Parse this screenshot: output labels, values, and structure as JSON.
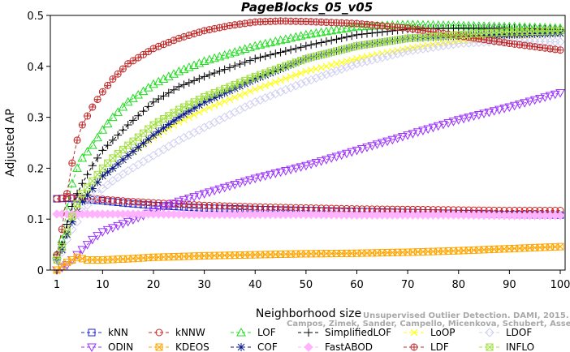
{
  "chart_data": {
    "type": "line",
    "title": "PageBlocks_05_v05",
    "xlabel": "Neighborhood size",
    "ylabel": "Adjusted AP",
    "xlim": [
      1,
      100
    ],
    "ylim": [
      0,
      0.5
    ],
    "xticks": [
      1,
      10,
      20,
      30,
      40,
      50,
      60,
      70,
      80,
      90,
      100
    ],
    "yticks": [
      0,
      0.1,
      0.2,
      0.3,
      0.4,
      0.5
    ],
    "xtick_labels": [
      "1",
      "10",
      "20",
      "30",
      "40",
      "50",
      "60",
      "70",
      "80",
      "90",
      "100"
    ],
    "ytick_labels": [
      "0",
      "0.1",
      "0.2",
      "0.3",
      "0.4",
      "0.5"
    ],
    "grid": false,
    "legend_placement": "bottom",
    "watermark": {
      "line1": "Unsupervised Outlier Detection. DAMI, 2015.",
      "line2": "Campos, Zimek, Sander, Campello, Micenkova, Schubert, Assent, Houle"
    },
    "series": [
      {
        "name": "kNN",
        "color": "#2020c8",
        "marker": "square",
        "x": [
          1,
          3,
          5,
          10,
          15,
          20,
          30,
          40,
          50,
          60,
          70,
          80,
          90,
          100
        ],
        "values": [
          0.14,
          0.141,
          0.14,
          0.136,
          0.131,
          0.127,
          0.122,
          0.119,
          0.117,
          0.115,
          0.113,
          0.111,
          0.109,
          0.108
        ]
      },
      {
        "name": "kNNW",
        "color": "#d02020",
        "marker": "circle",
        "x": [
          1,
          3,
          5,
          10,
          15,
          20,
          30,
          40,
          50,
          60,
          70,
          80,
          90,
          100
        ],
        "values": [
          0.14,
          0.142,
          0.142,
          0.139,
          0.135,
          0.132,
          0.127,
          0.124,
          0.122,
          0.12,
          0.119,
          0.118,
          0.117,
          0.117
        ]
      },
      {
        "name": "LOF",
        "color": "#20dd20",
        "marker": "triangle-up",
        "x": [
          1,
          2,
          3,
          4,
          5,
          6,
          8,
          10,
          12,
          15,
          20,
          25,
          30,
          40,
          50,
          60,
          70,
          80,
          90,
          100
        ],
        "values": [
          0.03,
          0.06,
          0.12,
          0.17,
          0.2,
          0.22,
          0.245,
          0.275,
          0.3,
          0.33,
          0.365,
          0.39,
          0.41,
          0.44,
          0.462,
          0.478,
          0.482,
          0.48,
          0.478,
          0.475
        ]
      },
      {
        "name": "SimplifiedLOF",
        "color": "#000000",
        "marker": "plus",
        "x": [
          1,
          2,
          3,
          4,
          5,
          6,
          8,
          10,
          12,
          15,
          20,
          25,
          30,
          40,
          50,
          60,
          70,
          80,
          90,
          100
        ],
        "values": [
          0.03,
          0.05,
          0.09,
          0.125,
          0.15,
          0.17,
          0.205,
          0.235,
          0.255,
          0.285,
          0.33,
          0.36,
          0.38,
          0.415,
          0.44,
          0.462,
          0.473,
          0.475,
          0.475,
          0.472
        ]
      },
      {
        "name": "LoOP",
        "color": "#ffff00",
        "marker": "x",
        "x": [
          1,
          2,
          3,
          4,
          5,
          6,
          8,
          10,
          12,
          15,
          20,
          25,
          30,
          40,
          50,
          60,
          70,
          80,
          90,
          100
        ],
        "values": [
          0.02,
          0.04,
          0.07,
          0.1,
          0.12,
          0.14,
          0.16,
          0.185,
          0.2,
          0.225,
          0.26,
          0.29,
          0.315,
          0.355,
          0.39,
          0.415,
          0.435,
          0.45,
          0.46,
          0.465
        ]
      },
      {
        "name": "LDOF",
        "color": "#d0d0f0",
        "marker": "diamond",
        "x": [
          1,
          2,
          3,
          4,
          5,
          6,
          8,
          10,
          12,
          15,
          20,
          25,
          30,
          40,
          50,
          60,
          70,
          80,
          90,
          100
        ],
        "values": [
          0.02,
          0.035,
          0.06,
          0.08,
          0.095,
          0.115,
          0.14,
          0.16,
          0.175,
          0.195,
          0.225,
          0.255,
          0.28,
          0.33,
          0.37,
          0.405,
          0.43,
          0.445,
          0.45,
          0.448
        ]
      },
      {
        "name": "ODIN",
        "color": "#9b30ff",
        "marker": "triangle-down",
        "x": [
          1,
          3,
          5,
          8,
          10,
          15,
          20,
          25,
          30,
          40,
          50,
          60,
          70,
          80,
          90,
          100
        ],
        "values": [
          0.0,
          0.01,
          0.03,
          0.06,
          0.075,
          0.095,
          0.115,
          0.135,
          0.15,
          0.18,
          0.205,
          0.235,
          0.265,
          0.295,
          0.32,
          0.348
        ]
      },
      {
        "name": "KDEOS",
        "color": "#ffa500",
        "marker": "box-x",
        "x": [
          1,
          3,
          5,
          7,
          10,
          15,
          20,
          30,
          40,
          50,
          60,
          70,
          80,
          90,
          100
        ],
        "values": [
          0.0,
          0.015,
          0.025,
          0.02,
          0.02,
          0.022,
          0.025,
          0.028,
          0.03,
          0.032,
          0.033,
          0.035,
          0.038,
          0.042,
          0.046
        ]
      },
      {
        "name": "COF",
        "color": "#0a1a8a",
        "marker": "asterisk",
        "x": [
          1,
          2,
          3,
          4,
          5,
          6,
          8,
          10,
          12,
          15,
          20,
          25,
          30,
          40,
          50,
          60,
          70,
          80,
          90,
          100
        ],
        "values": [
          0.02,
          0.04,
          0.07,
          0.095,
          0.115,
          0.135,
          0.16,
          0.185,
          0.2,
          0.225,
          0.265,
          0.3,
          0.33,
          0.375,
          0.415,
          0.44,
          0.455,
          0.46,
          0.462,
          0.465
        ]
      },
      {
        "name": "FastABOD",
        "color": "#ffb3ff",
        "marker": "diamond-filled",
        "x": [
          1,
          5,
          10,
          20,
          30,
          40,
          50,
          60,
          70,
          80,
          90,
          100
        ],
        "values": [
          0.11,
          0.11,
          0.11,
          0.11,
          0.109,
          0.109,
          0.109,
          0.108,
          0.108,
          0.108,
          0.107,
          0.107
        ]
      },
      {
        "name": "LDF",
        "color": "#c02828",
        "marker": "circle-plus",
        "x": [
          1,
          2,
          3,
          4,
          5,
          6,
          8,
          10,
          12,
          15,
          20,
          25,
          30,
          35,
          40,
          45,
          50,
          60,
          70,
          80,
          90,
          100
        ],
        "values": [
          0.03,
          0.08,
          0.15,
          0.21,
          0.255,
          0.285,
          0.32,
          0.35,
          0.375,
          0.405,
          0.435,
          0.455,
          0.47,
          0.48,
          0.487,
          0.489,
          0.488,
          0.484,
          0.475,
          0.46,
          0.445,
          0.432
        ]
      },
      {
        "name": "INFLO",
        "color": "#a0e040",
        "marker": "box-x",
        "x": [
          1,
          2,
          3,
          4,
          5,
          6,
          8,
          10,
          12,
          15,
          20,
          25,
          30,
          40,
          50,
          60,
          70,
          80,
          90,
          100
        ],
        "values": [
          0.02,
          0.045,
          0.075,
          0.105,
          0.13,
          0.15,
          0.175,
          0.2,
          0.22,
          0.245,
          0.285,
          0.315,
          0.34,
          0.38,
          0.415,
          0.44,
          0.455,
          0.462,
          0.468,
          0.47
        ]
      }
    ],
    "legend": {
      "rows": [
        [
          "kNN",
          "kNNW",
          "LOF",
          "SimplifiedLOF",
          "LoOP",
          "LDOF"
        ],
        [
          "ODIN",
          "KDEOS",
          "COF",
          "FastABOD",
          "LDF",
          "INFLO"
        ]
      ]
    }
  }
}
